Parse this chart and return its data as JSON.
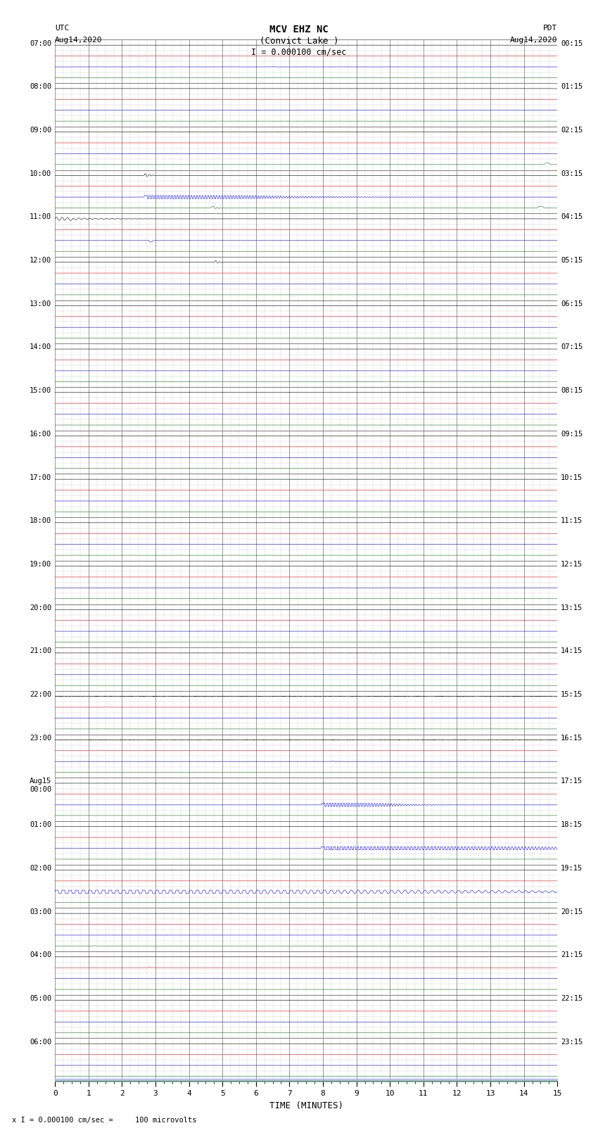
{
  "title_line1": "MCV EHZ NC",
  "title_line2": "(Convict Lake )",
  "title_line3": "I = 0.000100 cm/sec",
  "left_label_top": "UTC",
  "left_label_date": "Aug14,2020",
  "right_label_top": "PDT",
  "right_label_date": "Aug14,2020",
  "xlabel": "TIME (MINUTES)",
  "bottom_note": "x I = 0.000100 cm/sec =     100 microvolts",
  "x_min": 0,
  "x_max": 15,
  "num_hours": 24,
  "traces_per_hour": 4,
  "left_times_utc": [
    "07:00",
    "08:00",
    "09:00",
    "10:00",
    "11:00",
    "12:00",
    "13:00",
    "14:00",
    "15:00",
    "16:00",
    "17:00",
    "18:00",
    "19:00",
    "20:00",
    "21:00",
    "22:00",
    "23:00",
    "Aug15\n00:00",
    "01:00",
    "02:00",
    "03:00",
    "04:00",
    "05:00",
    "06:00"
  ],
  "right_times_pdt": [
    "00:15",
    "01:15",
    "02:15",
    "03:15",
    "04:15",
    "05:15",
    "06:15",
    "07:15",
    "08:15",
    "09:15",
    "10:15",
    "11:15",
    "12:15",
    "13:15",
    "14:15",
    "15:15",
    "16:15",
    "17:15",
    "18:15",
    "19:15",
    "20:15",
    "21:15",
    "22:15",
    "23:15"
  ],
  "bg_color": "#ffffff",
  "trace_colors": [
    "black",
    "red",
    "blue",
    "green"
  ],
  "noise_amp": 0.008,
  "seed": 12345
}
